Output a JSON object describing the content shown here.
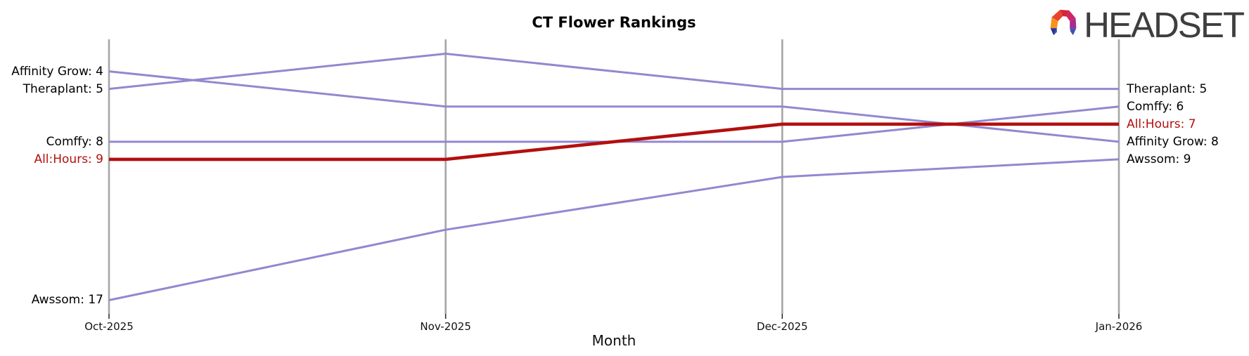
{
  "header": {
    "logo_text": "HEADSET"
  },
  "chart_data": {
    "type": "line",
    "subtype": "bump-ranking-chart",
    "title": "CT Flower Rankings",
    "xlabel": "Month",
    "x_categories": [
      "Oct-2025",
      "Nov-2025",
      "Dec-2025",
      "Jan-2026"
    ],
    "y_meaning": "rank position (lower number = better; y-axis inverted, no y tick labels)",
    "y_range_visible": [
      3,
      17
    ],
    "grid": "vertical axis line at each month only",
    "legend": "none (series labeled directly at line start/end points)",
    "series": [
      {
        "name": "Affinity Grow",
        "ranks": [
          4,
          6,
          6,
          8
        ],
        "highlight": false,
        "start_label": "Affinity Grow: 4",
        "end_label": "Affinity Grow: 8"
      },
      {
        "name": "Theraplant",
        "ranks": [
          5,
          3,
          5,
          5
        ],
        "highlight": false,
        "start_label": "Theraplant: 5",
        "end_label": "Theraplant: 5"
      },
      {
        "name": "Comffy",
        "ranks": [
          8,
          8,
          8,
          6
        ],
        "highlight": false,
        "start_label": "Comffy: 8",
        "end_label": "Comffy: 6"
      },
      {
        "name": "All:Hours",
        "ranks": [
          9,
          9,
          7,
          7
        ],
        "highlight": true,
        "start_label": "All:Hours: 9",
        "end_label": "All:Hours: 7"
      },
      {
        "name": "Awssom",
        "ranks": [
          17,
          13,
          10,
          9
        ],
        "highlight": false,
        "start_label": "Awssom: 17",
        "end_label": "Awssom: 9"
      }
    ],
    "colors": {
      "line": "#9288d0",
      "highlight_line": "#b30f0f",
      "highlight_label": "#b30f0f",
      "label": "#000000",
      "axis": "#a6a6a6",
      "tick": "#222222",
      "text": "#111111"
    }
  }
}
